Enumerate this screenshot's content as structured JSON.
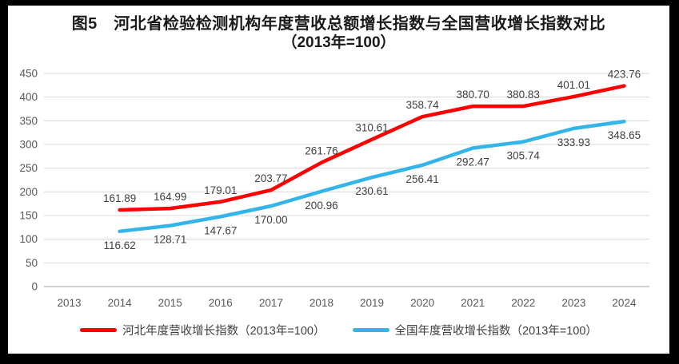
{
  "window": {
    "frame_color": "#000000",
    "background": "#ffffff"
  },
  "title": {
    "line1": "图5　河北省检验检测机构年度营收总额增长指数与全国营收增长指数对比",
    "line2": "（2013年=100）"
  },
  "chart_data": {
    "type": "line",
    "title": "图5　河北省检验检测机构年度营收总额增长指数与全国营收增长指数对比（2013年=100）",
    "categories": [
      "2013",
      "2014",
      "2015",
      "2016",
      "2017",
      "2018",
      "2019",
      "2020",
      "2021",
      "2022",
      "2023",
      "2024"
    ],
    "series": [
      {
        "name": "河北年度营收增长指数（2013年=100）",
        "color": "#FF0000",
        "label_position": "above",
        "values": [
          null,
          161.89,
          164.99,
          179.01,
          203.77,
          261.76,
          310.61,
          358.74,
          380.7,
          380.83,
          401.01,
          423.76
        ]
      },
      {
        "name": "全国年度营收增长指数（2013年=100）",
        "color": "#33B5E9",
        "label_position": "below",
        "values": [
          null,
          116.62,
          128.71,
          147.67,
          170.0,
          200.96,
          230.61,
          256.41,
          292.47,
          305.74,
          333.93,
          348.65
        ]
      }
    ],
    "xlabel": "",
    "ylabel": "",
    "ylim": [
      0,
      450
    ],
    "ytick_step": 50,
    "grid": true,
    "legend_position": "bottom",
    "grid_color": "#D9D9D9",
    "axis_color": "#BFBFBF",
    "tick_color": "#595959",
    "label_color": "#404040",
    "label_decimals": 2
  }
}
